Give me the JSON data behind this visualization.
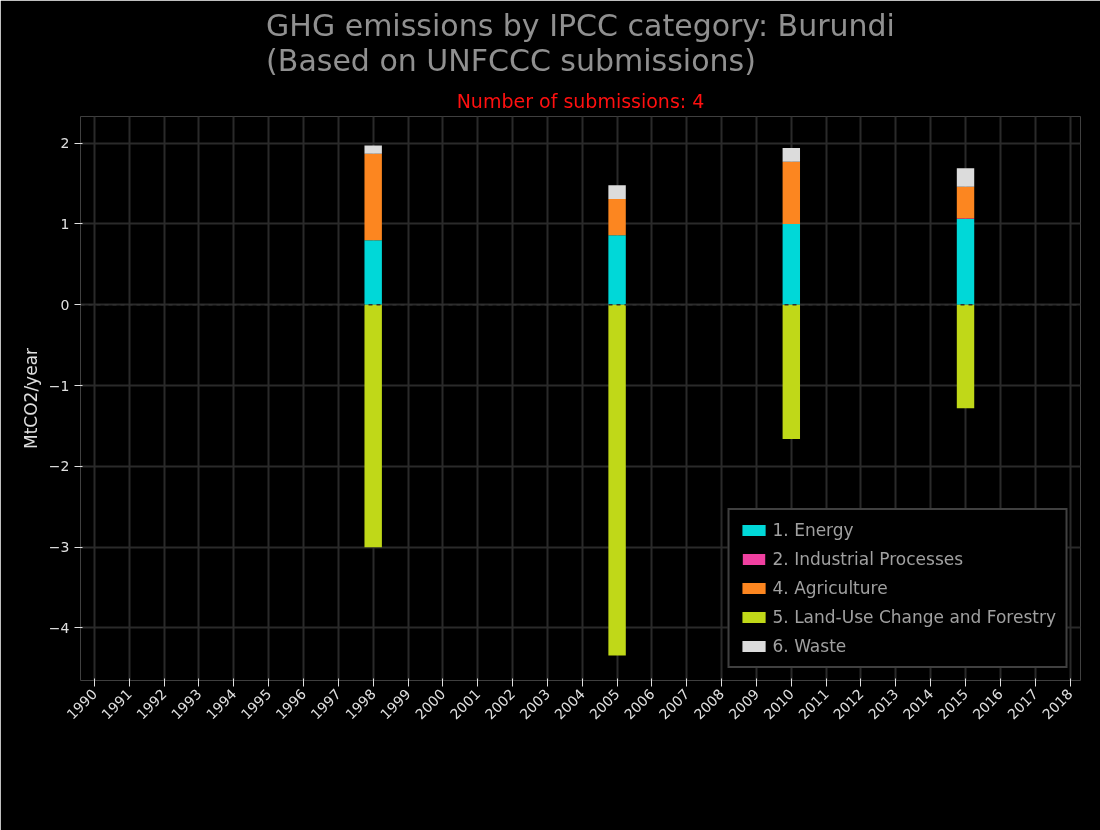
{
  "chart_data": {
    "type": "bar",
    "stacked": true,
    "title": "GHG emissions by IPCC category: Burundi\n(Based on UNFCCC submissions)",
    "subtitle": "Number of submissions: 4",
    "ylabel": "MtCO2/year",
    "x": [
      1998,
      2005,
      2010,
      2015
    ],
    "series": [
      {
        "name": "1. Energy",
        "color": "#00d8d8",
        "values": [
          0.8,
          0.86,
          1.0,
          1.06
        ]
      },
      {
        "name": "2. Industrial Processes",
        "color": "#f040a0",
        "values": [
          null,
          null,
          null,
          0.01
        ]
      },
      {
        "name": "4. Agriculture",
        "color": "#fc8620",
        "values": [
          1.07,
          0.45,
          0.77,
          0.39
        ]
      },
      {
        "name": "5. Land-Use Change and Forestry",
        "color": "#c0d818",
        "values": [
          -3.0,
          -4.34,
          -1.66,
          -1.28
        ]
      },
      {
        "name": "6. Waste",
        "color": "#dcdcdc",
        "values": [
          0.1,
          0.17,
          0.17,
          0.23
        ]
      }
    ],
    "xlim": [
      1989.6,
      2018.3
    ],
    "xticks": [
      1990,
      1991,
      1992,
      1993,
      1994,
      1995,
      1996,
      1997,
      1998,
      1999,
      2000,
      2001,
      2002,
      2003,
      2004,
      2005,
      2006,
      2007,
      2008,
      2009,
      2010,
      2011,
      2012,
      2013,
      2014,
      2015,
      2016,
      2017,
      2018
    ],
    "ylim": [
      -4.65,
      2.33
    ],
    "yticks": [
      {
        "value": -4,
        "label": "−4"
      },
      {
        "value": -3,
        "label": "−3"
      },
      {
        "value": -2,
        "label": "−2"
      },
      {
        "value": -1,
        "label": "−1"
      },
      0,
      1,
      2
    ],
    "ref_lines": [
      {
        "axis": "y",
        "value": 0,
        "label": null,
        "color": "#303030",
        "line_style": "dashed"
      }
    ],
    "grid": true,
    "legend": "bottom right"
  }
}
